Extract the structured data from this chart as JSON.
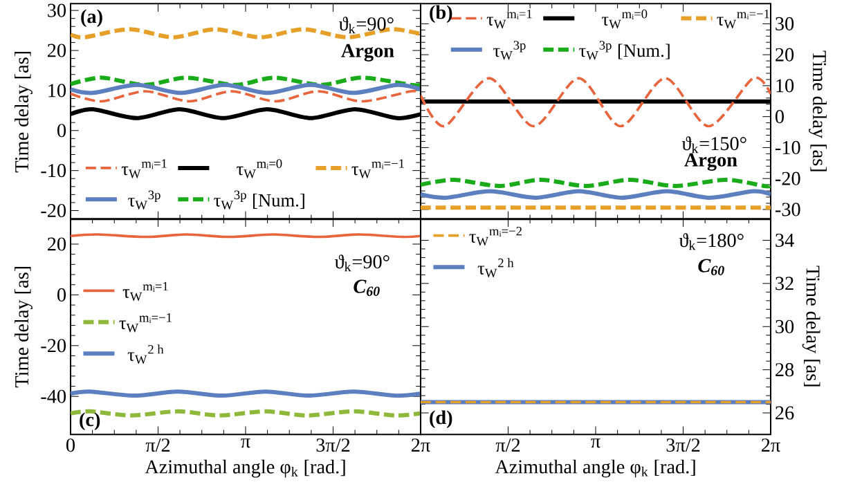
{
  "chart_data": [
    {
      "type": "line",
      "ylabel": "Time delay [as]",
      "tick_labels": "y",
      "legend": "bottom",
      "annotations": [
        "(a)",
        "ϑ$_{k}$=90°",
        "Argon"
      ],
      "xlim": [
        0,
        6.2832
      ],
      "xticks": [
        {
          "value": 1.5708,
          "label": null
        },
        {
          "value": 3.1416,
          "label": null
        },
        {
          "value": 4.7124,
          "label": null
        }
      ],
      "ylim": [
        -22.2,
        31.7
      ],
      "yticks": [
        -20,
        -10,
        0,
        10,
        20,
        30
      ],
      "series": [
        {
          "name": "τ$_{W}$$^{mᵢ=1}$",
          "color": "#e8643c",
          "line_style": "dashed",
          "x": [
            0,
            0.55,
            1.34,
            2.13,
            2.89,
            3.68,
            4.44,
            5.23,
            6.11,
            6.2832
          ],
          "values": [
            9.2,
            7.3,
            9.8,
            7.3,
            9.8,
            7.3,
            9.8,
            7.3,
            9.8,
            9.3
          ]
        },
        {
          "name": "τ$_{W}$$^{mᵢ=0}$",
          "color": "#000000",
          "line_style": "solid",
          "x": [
            0,
            0.4,
            1.19,
            1.95,
            2.74,
            3.53,
            4.31,
            5.1,
            5.86,
            6.2832
          ],
          "values": [
            4.1,
            5.3,
            3.1,
            5.3,
            3.1,
            5.3,
            3.1,
            5.3,
            3.1,
            4.1
          ]
        },
        {
          "name": "τ$_{W}$$^{mᵢ=−1}$",
          "color": "#e6a02a",
          "line_style": "dashed",
          "x": [
            0,
            0.25,
            1.05,
            1.84,
            2.6,
            3.4,
            4.18,
            4.97,
            5.75,
            6.2832
          ],
          "values": [
            24.0,
            23.3,
            25.3,
            23.3,
            25.3,
            23.3,
            25.3,
            23.3,
            25.3,
            24.1
          ]
        },
        {
          "name": "τ$_{W}$$^{3p}$",
          "color": "#5b7fbf",
          "line_style": "solid",
          "x": [
            0,
            0.4,
            1.19,
            1.98,
            2.77,
            3.53,
            4.31,
            5.08,
            5.86,
            6.2832
          ],
          "values": [
            10.3,
            9.4,
            11.4,
            9.4,
            11.4,
            9.4,
            11.4,
            9.4,
            11.4,
            10.3
          ]
        },
        {
          "name": "τ$_{W}$$^{3p}$ [Num.]",
          "color": "#1aab1a",
          "line_style": "dashed",
          "x": [
            0,
            0.55,
            1.34,
            2.08,
            2.96,
            3.65,
            4.49,
            5.23,
            6.11,
            6.2832
          ],
          "values": [
            11.6,
            13.2,
            11.4,
            13.2,
            11.4,
            13.2,
            11.4,
            13.2,
            11.4,
            11.4
          ]
        }
      ]
    },
    {
      "type": "line",
      "ylabel": "Time delay [as]",
      "tick_labels": "y",
      "legend": "top",
      "annotations": [
        "(b)",
        "ϑ$_{k}$=150°",
        "Argon"
      ],
      "xlim": [
        0,
        6.2832
      ],
      "xticks": [
        {
          "value": 1.5708,
          "label": null
        },
        {
          "value": 3.1416,
          "label": null
        },
        {
          "value": 4.7124,
          "label": null
        }
      ],
      "ylim": [
        -33.2,
        36.5
      ],
      "yticks": [
        -30,
        -20,
        -10,
        0,
        10,
        20,
        30
      ],
      "series": [
        {
          "name": "τ$_{W}$$^{mᵢ=1}$",
          "color": "#e8643c",
          "line_style": "dashed",
          "x": [
            0,
            0.43,
            1.23,
            2.03,
            2.84,
            3.59,
            4.39,
            5.17,
            5.97,
            6.2832
          ],
          "values": [
            6.9,
            -3.1,
            12.4,
            -3.1,
            12.4,
            -3.1,
            12.4,
            -3.1,
            12.4,
            7.3
          ]
        },
        {
          "name": "τ$_{W}$$^{mᵢ=0}$",
          "color": "#000000",
          "line_style": "solid",
          "x": [
            0,
            6.2832
          ],
          "values": [
            4.9,
            4.9
          ]
        },
        {
          "name": "τ$_{W}$$^{mᵢ=−1}$",
          "color": "#e6a02a",
          "line_style": "dashed",
          "x": [
            0,
            6.2832
          ],
          "values": [
            -29.4,
            -29.4
          ]
        },
        {
          "name": "τ$_{W}$$^{3p}$",
          "color": "#5b7fbf",
          "line_style": "solid",
          "x": [
            0,
            0.45,
            1.25,
            2.06,
            2.84,
            3.61,
            4.42,
            5.19,
            5.97,
            6.2832
          ],
          "values": [
            -25.1,
            -26.2,
            -24.1,
            -26.2,
            -24.1,
            -26.2,
            -24.1,
            -26.2,
            -24.1,
            -25.1
          ]
        },
        {
          "name": "τ$_{W}$$^{3p}$ [Num.]",
          "color": "#1aab1a",
          "line_style": "dashed",
          "x": [
            0,
            0.6,
            1.41,
            2.16,
            2.96,
            3.76,
            4.57,
            5.47,
            6.17,
            6.2832
          ],
          "values": [
            -22.0,
            -20.4,
            -22.4,
            -20.4,
            -22.4,
            -20.4,
            -22.4,
            -20.4,
            -22.4,
            -22.4
          ]
        }
      ]
    },
    {
      "type": "line",
      "xlabel": "Azimuthal angle φ$_{k}$ [rad.]",
      "ylabel": "Time delay [as]",
      "legend": "left",
      "annotations": [
        "(c)",
        "ϑ$_{k}$=90°",
        "C$_{60}$"
      ],
      "xlim": [
        0,
        6.2832
      ],
      "xticks": [
        0,
        {
          "value": 1.5708,
          "label": "π/2"
        },
        {
          "value": 3.1416,
          "label": "π"
        },
        {
          "value": 4.7124,
          "label": "3π/2"
        },
        {
          "value": 6.2832,
          "label": "2π"
        }
      ],
      "ylim": [
        -55,
        30
      ],
      "yticks": [
        -40,
        -20,
        0,
        20
      ],
      "series": [
        {
          "name": "τ$_{W}$$^{mᵢ=1}$",
          "color": "#e8643c",
          "line_style": "solid",
          "x": [
            0,
            0.5,
            1.34,
            2.08,
            2.86,
            3.63,
            4.44,
            5.18,
            5.96,
            6.2832
          ],
          "values": [
            23.2,
            23.8,
            22.8,
            23.8,
            22.8,
            23.8,
            22.8,
            23.8,
            22.8,
            23.2
          ]
        },
        {
          "name": "τ$_{W}$$^{mᵢ=−1}$",
          "color": "#8db83a",
          "line_style": "dashed",
          "x": [
            0,
            0.35,
            1.09,
            1.93,
            2.67,
            3.5,
            4.24,
            5.08,
            5.82,
            6.2832
          ],
          "values": [
            -46.7,
            -45.9,
            -47.5,
            -45.9,
            -47.5,
            -45.9,
            -47.5,
            -45.9,
            -47.5,
            -46.7
          ]
        },
        {
          "name": "τ$_{W}$$^{2 h}$",
          "color": "#5b7fbf",
          "line_style": "solid",
          "x": [
            0,
            0.35,
            1.14,
            1.93,
            2.72,
            3.5,
            4.27,
            5.08,
            5.82,
            6.2832
          ],
          "values": [
            -38.9,
            -38.1,
            -39.7,
            -38.1,
            -39.7,
            -38.1,
            -39.7,
            -38.1,
            -39.7,
            -38.9
          ]
        }
      ]
    },
    {
      "type": "line",
      "xlabel": "Azimuthal angle φ$_{k}$ [rad.]",
      "ylabel": "Time delay [as]",
      "legend": "top left",
      "annotations": [
        "(d)",
        "ϑ$_{k}$=180°",
        "C$_{60}$"
      ],
      "xlim": [
        0,
        6.2832
      ],
      "xticks": [
        {
          "value": 1.5708,
          "label": "π/2"
        },
        {
          "value": 3.1416,
          "label": "π"
        },
        {
          "value": 4.7124,
          "label": "3π/2"
        },
        {
          "value": 6.2832,
          "label": "2π"
        }
      ],
      "ylim": [
        25,
        35
      ],
      "yticks": [
        26,
        28,
        30,
        32,
        34
      ],
      "series": [
        {
          "name": "τ$_{W}$$^{mᵢ=−2}$",
          "color": "#e6a02a",
          "line_style": "dashed",
          "x": [
            0,
            6.2832
          ],
          "values": [
            26.5,
            26.5
          ]
        },
        {
          "name": "τ$_{W}$$^{2 h}$",
          "color": "#5b7fbf",
          "line_style": "solid",
          "x": [
            0,
            6.2832
          ],
          "values": [
            26.5,
            26.5
          ]
        }
      ]
    }
  ]
}
